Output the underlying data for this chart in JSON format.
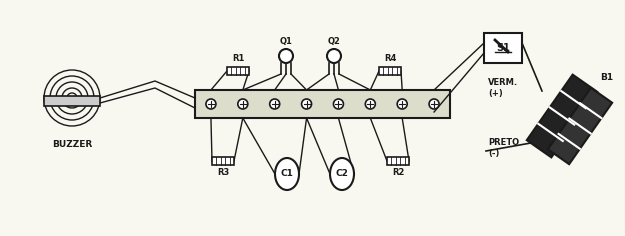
{
  "title": "",
  "background_color": "#f8f8f0",
  "fig_width": 6.25,
  "fig_height": 2.36,
  "dpi": 100,
  "labels": {
    "buzzer": "BUZZER",
    "q1": "Q1",
    "q2": "Q2",
    "r1": "R1",
    "r2": "R2",
    "r3": "R3",
    "r4": "R4",
    "c1": "C1",
    "c2": "C2",
    "s1": "S1",
    "b1": "B1",
    "verm": "VERM.\n(+)",
    "preto": "PRETO\n(-)"
  },
  "line_color": "#1a1a1a",
  "bg": "#f8f8f0"
}
